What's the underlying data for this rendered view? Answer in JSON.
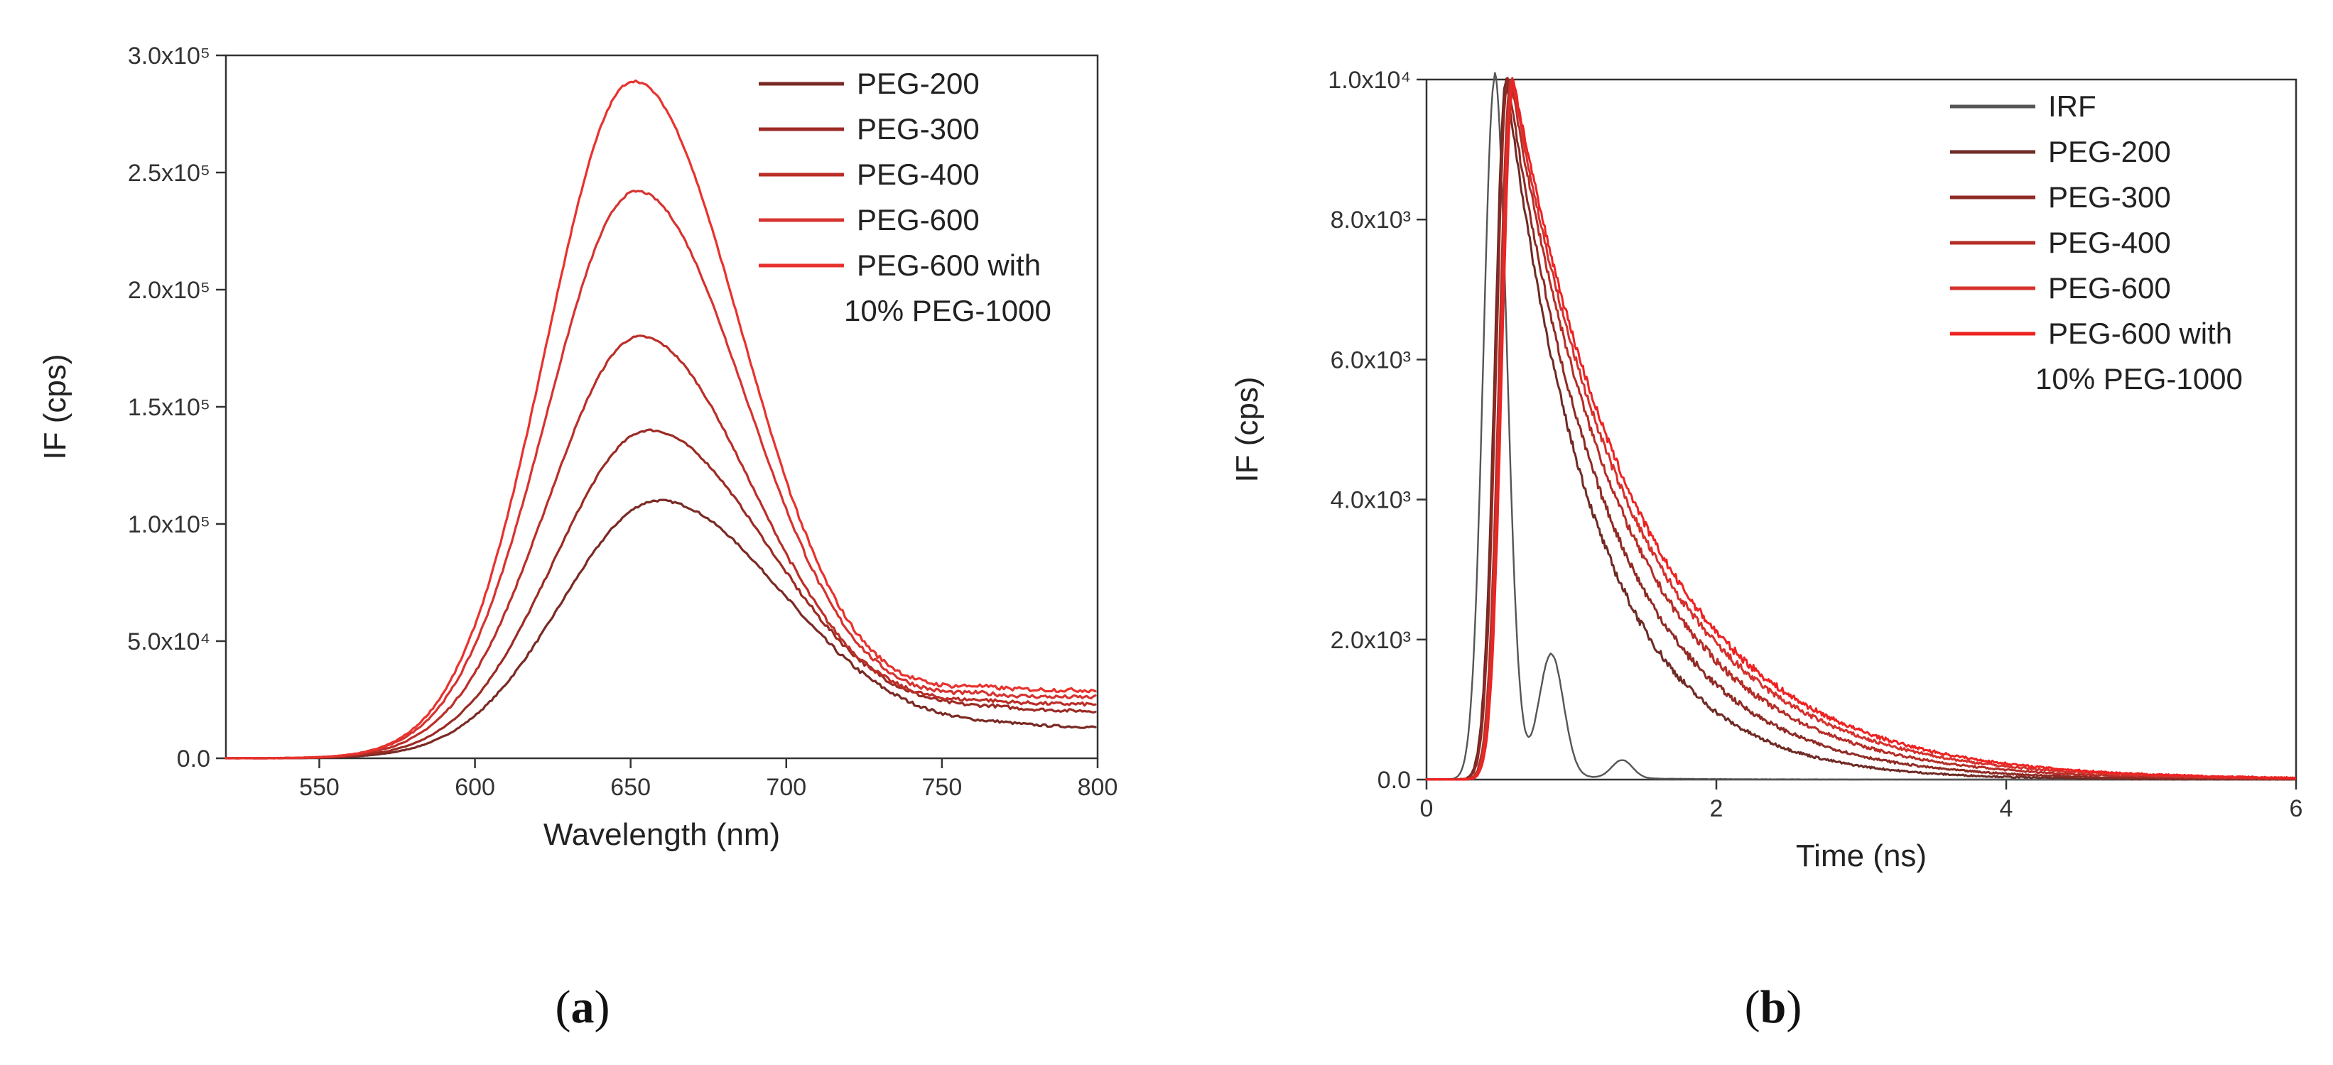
{
  "figure": {
    "panel_a_label": "a",
    "panel_b_label": "b"
  },
  "chart_data": [
    {
      "type": "line",
      "panel": "a",
      "title": "",
      "xlabel": "Wavelength (nm)",
      "ylabel": "IF (cps)",
      "xlim": [
        520,
        800
      ],
      "ylim": [
        0,
        300000
      ],
      "xticks": [
        "550",
        "600",
        "650",
        "700",
        "750",
        "800"
      ],
      "yticks": [
        "0.0",
        "5.0x10⁴",
        "1.0x10⁵",
        "1.5x10⁵",
        "2.0x10⁵",
        "2.5x10⁵",
        "3.0x10⁵"
      ],
      "legend_position": "top-right",
      "series": [
        {
          "name": "PEG-200",
          "color": "#7a2a24",
          "peak_x": 659,
          "peak": 110000,
          "left_width": 44,
          "right_width": 58,
          "tail_end": 13000
        },
        {
          "name": "PEG-300",
          "color": "#9b2b24",
          "peak_x": 656,
          "peak": 140000,
          "left_width": 43,
          "right_width": 56,
          "tail_end": 20000
        },
        {
          "name": "PEG-400",
          "color": "#bb2e28",
          "peak_x": 653,
          "peak": 180000,
          "left_width": 42,
          "right_width": 53,
          "tail_end": 23000
        },
        {
          "name": "PEG-600",
          "color": "#d63330",
          "peak_x": 652,
          "peak": 242000,
          "left_width": 41,
          "right_width": 51,
          "tail_end": 26000
        },
        {
          "name": "PEG-600 with 10% PEG-1000",
          "name_line1": "PEG-600 with",
          "name_line2": "10% PEG-1000",
          "color": "#e8322e",
          "peak_x": 651,
          "peak": 289000,
          "left_width": 40,
          "right_width": 50,
          "tail_end": 29000
        }
      ]
    },
    {
      "type": "line",
      "panel": "b",
      "title": "",
      "xlabel": "Time (ns)",
      "ylabel": "IF (cps)",
      "xlim": [
        0,
        6
      ],
      "ylim": [
        0,
        10000
      ],
      "xticks": [
        "0",
        "2",
        "4",
        "6"
      ],
      "yticks": [
        "0.0",
        "2.0x10³",
        "4.0x10³",
        "6.0x10³",
        "8.0x10³",
        "1.0x10⁴"
      ],
      "legend_position": "top-right",
      "series": [
        {
          "name": "IRF",
          "color": "#555555",
          "peak_x": 0.47,
          "peak": 10000,
          "decay_ns": 0.17
        },
        {
          "name": "PEG-200",
          "color": "#6e2a24",
          "peak_x": 0.55,
          "peak": 10000,
          "decay_ns": 0.62
        },
        {
          "name": "PEG-300",
          "color": "#8f2a24",
          "peak_x": 0.56,
          "peak": 10000,
          "decay_ns": 0.72
        },
        {
          "name": "PEG-400",
          "color": "#b52d27",
          "peak_x": 0.58,
          "peak": 10000,
          "decay_ns": 0.8
        },
        {
          "name": "PEG-600",
          "color": "#d6312d",
          "peak_x": 0.59,
          "peak": 10000,
          "decay_ns": 0.86
        },
        {
          "name": "PEG-600 with 10% PEG-1000",
          "name_line1": "PEG-600 with",
          "name_line2": "10% PEG-1000",
          "color": "#ef2222",
          "peak_x": 0.6,
          "peak": 10000,
          "decay_ns": 0.9
        }
      ]
    }
  ]
}
